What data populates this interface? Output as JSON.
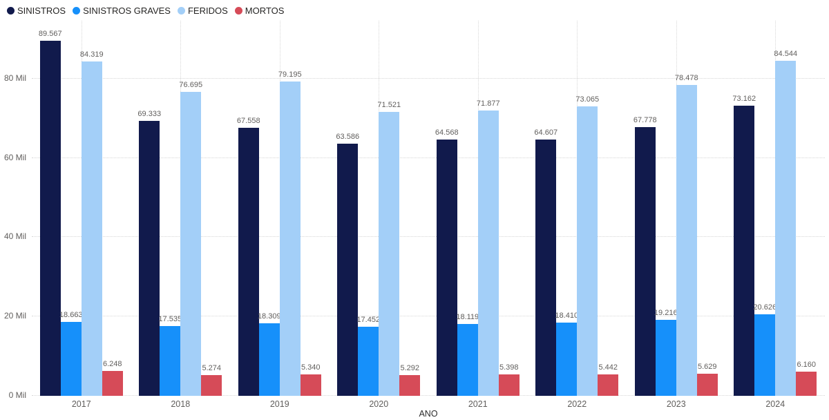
{
  "chart_data": {
    "type": "bar",
    "title": "",
    "xlabel": "ANO",
    "ylabel": "",
    "categories": [
      "2017",
      "2018",
      "2019",
      "2020",
      "2021",
      "2022",
      "2023",
      "2024"
    ],
    "series": [
      {
        "name": "SINISTROS",
        "color": "#111a4c",
        "values": [
          89567,
          69333,
          67558,
          63586,
          64568,
          64607,
          67778,
          73162
        ],
        "labels": [
          "89.567",
          "69.333",
          "67.558",
          "63.586",
          "64.568",
          "64.607",
          "67.778",
          "73.162"
        ]
      },
      {
        "name": "SINISTROS GRAVES",
        "color": "#1690fa",
        "values": [
          18663,
          17535,
          18309,
          17452,
          18119,
          18410,
          19216,
          20626
        ],
        "labels": [
          "18.663",
          "17.535",
          "18.309",
          "17.452",
          "18.119",
          "18.410",
          "19.216",
          "20.626"
        ]
      },
      {
        "name": "FERIDOS",
        "color": "#a3cff8",
        "values": [
          84319,
          76695,
          79195,
          71521,
          71877,
          73065,
          78478,
          84544
        ],
        "labels": [
          "84.319",
          "76.695",
          "79.195",
          "71.521",
          "71.877",
          "73.065",
          "78.478",
          "84.544"
        ]
      },
      {
        "name": "MORTOS",
        "color": "#d64b58",
        "values": [
          6248,
          5274,
          5340,
          5292,
          5398,
          5442,
          5629,
          6160
        ],
        "labels": [
          "6.248",
          "5.274",
          "5.340",
          "5.292",
          "5.398",
          "5.442",
          "5.629",
          "6.160"
        ]
      }
    ],
    "y_axis": {
      "ticks": [
        {
          "value": 0,
          "label": "0 Mil"
        },
        {
          "value": 20000,
          "label": "20 Mil"
        },
        {
          "value": 40000,
          "label": "40 Mil"
        },
        {
          "value": 60000,
          "label": "60 Mil"
        },
        {
          "value": 80000,
          "label": "80 Mil"
        }
      ]
    },
    "ylim": [
      0,
      94600
    ],
    "grid": true,
    "legend_position": "top-left",
    "label_color": "#605e5c"
  }
}
